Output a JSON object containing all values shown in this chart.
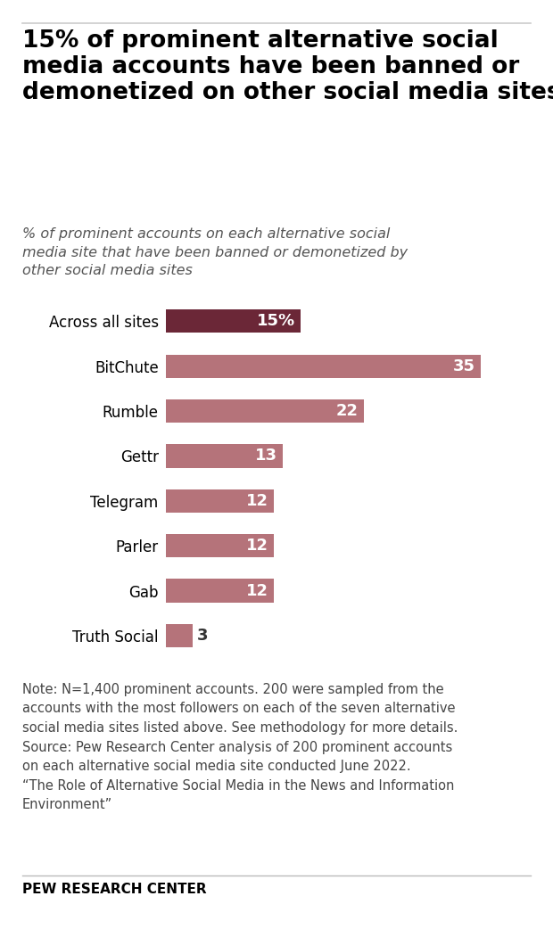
{
  "title": "15% of prominent alternative social\nmedia accounts have been banned or\ndemonetized on other social media sites",
  "subtitle": "% of prominent accounts on each alternative social\nmedia site that have been banned or demonetized by\nother social media sites",
  "categories": [
    "Across all sites",
    "BitChute",
    "Rumble",
    "Gettr",
    "Telegram",
    "Parler",
    "Gab",
    "Truth Social"
  ],
  "values": [
    15,
    35,
    22,
    13,
    12,
    12,
    12,
    3
  ],
  "bar_colors": [
    "#6b2737",
    "#b5737a",
    "#b5737a",
    "#b5737a",
    "#b5737a",
    "#b5737a",
    "#b5737a",
    "#b5737a"
  ],
  "label_suffix": [
    "15%",
    "35",
    "22",
    "13",
    "12",
    "12",
    "12",
    "3"
  ],
  "label_inside": [
    true,
    true,
    true,
    true,
    true,
    true,
    true,
    false
  ],
  "label_color_inside": "#ffffff",
  "label_color_outside": "#333333",
  "note": "Note: N=1,400 prominent accounts. 200 were sampled from the\naccounts with the most followers on each of the seven alternative\nsocial media sites listed above. See methodology for more details.\nSource: Pew Research Center analysis of 200 prominent accounts\non each alternative social media site conducted June 2022.\n“The Role of Alternative Social Media in the News and Information\nEnvironment”",
  "footer": "PEW RESEARCH CENTER",
  "background_color": "#ffffff",
  "text_color": "#000000",
  "xlim": [
    0,
    40
  ],
  "title_fontsize": 19,
  "subtitle_fontsize": 11.5,
  "cat_fontsize": 12,
  "val_fontsize": 13,
  "note_fontsize": 10.5,
  "footer_fontsize": 11,
  "bar_height": 0.52
}
